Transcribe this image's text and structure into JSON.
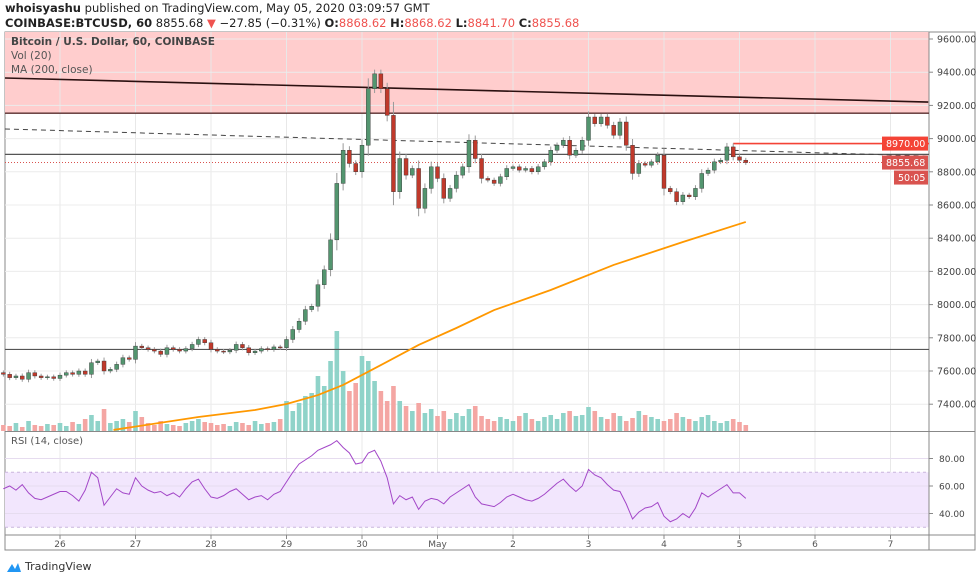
{
  "header": {
    "author": "whoisyashu",
    "published_text": "published on TradingView.com, May 05, 2020 03:09:57 GMT",
    "symbol": "COINBASE:BTCUSD, 60",
    "last": "8855.68",
    "change": "−27.85 (−0.31%)",
    "change_direction": "down",
    "o_label": "O:",
    "o": "8868.62",
    "h_label": "H:",
    "h": "8868.62",
    "l_label": "L:",
    "l": "8841.70",
    "c_label": "C:",
    "c": "8855.68"
  },
  "legend": {
    "title": "Bitcoin / U.S. Dollar, 60, COINBASE",
    "vol": "Vol (20)",
    "ma": "MA (200, close)",
    "rsi": "RSI (14, close)"
  },
  "footer": {
    "brand": "TradingView"
  },
  "colors": {
    "up": "#53956f",
    "down": "#c0392b",
    "vol_up": "#8fd3c9",
    "vol_down": "#f4a6a3",
    "ma": "#ff9800",
    "rsi": "#a347c8",
    "rsi_band": "#f2e6fd",
    "zone": "#ffcdcd",
    "accent_red": "#f44336",
    "last_price": "#d9534f"
  },
  "chart_data": [
    {
      "type": "candlestick",
      "title": "Bitcoin / U.S. Dollar, 60, COINBASE",
      "ylim": [
        7250,
        9650
      ],
      "y_ticks": [
        "9600.00",
        "9400.00",
        "9200.00",
        "9000.00",
        "8800.00",
        "8600.00",
        "8400.00",
        "8200.00",
        "8000.00",
        "7800.00",
        "7600.00",
        "7400.00"
      ],
      "x_ticks": [
        {
          "label": "26",
          "t": "04-26 00:00"
        },
        {
          "label": "27",
          "t": "04-27 00:00"
        },
        {
          "label": "28",
          "t": "04-28 00:00"
        },
        {
          "label": "29",
          "t": "04-29 00:00"
        },
        {
          "label": "30",
          "t": "04-30 00:00"
        },
        {
          "label": "May",
          "t": "05-01 00:00"
        },
        {
          "label": "2",
          "t": "05-02 00:00"
        },
        {
          "label": "3",
          "t": "05-03 00:00"
        },
        {
          "label": "4",
          "t": "05-04 00:00"
        },
        {
          "label": "5",
          "t": "05-05 00:00"
        },
        {
          "label": "6",
          "t": "05-06 00:00"
        },
        {
          "label": "7",
          "t": "05-07 00:00"
        }
      ],
      "grid": true,
      "columns": [
        "time",
        "close",
        "volume_relative_pct",
        "rsi"
      ],
      "rows": [
        [
          "04-25 06:00",
          7580,
          6,
          58
        ],
        [
          "04-25 08:00",
          7560,
          5,
          60
        ],
        [
          "04-25 10:00",
          7570,
          8,
          57
        ],
        [
          "04-25 12:00",
          7550,
          4,
          61
        ],
        [
          "04-25 14:00",
          7590,
          10,
          55
        ],
        [
          "04-25 16:00",
          7570,
          6,
          51
        ],
        [
          "04-25 18:00",
          7560,
          5,
          50
        ],
        [
          "04-25 20:00",
          7565,
          7,
          52
        ],
        [
          "04-25 22:00",
          7555,
          6,
          54
        ],
        [
          "04-26 00:00",
          7575,
          8,
          56
        ],
        [
          "04-26 02:00",
          7590,
          5,
          56
        ],
        [
          "04-26 04:00",
          7580,
          9,
          53
        ],
        [
          "04-26 06:00",
          7600,
          7,
          49
        ],
        [
          "04-26 08:00",
          7580,
          12,
          57
        ],
        [
          "04-26 10:00",
          7650,
          16,
          70
        ],
        [
          "04-26 12:00",
          7660,
          10,
          66
        ],
        [
          "04-26 14:00",
          7600,
          22,
          46
        ],
        [
          "04-26 16:00",
          7610,
          8,
          52
        ],
        [
          "04-26 18:00",
          7640,
          10,
          58
        ],
        [
          "04-26 20:00",
          7680,
          12,
          55
        ],
        [
          "04-26 22:00",
          7670,
          9,
          54
        ],
        [
          "04-27 00:00",
          7750,
          20,
          66
        ],
        [
          "04-27 02:00",
          7740,
          14,
          60
        ],
        [
          "04-27 04:00",
          7730,
          8,
          57
        ],
        [
          "04-27 06:00",
          7720,
          6,
          55
        ],
        [
          "04-27 08:00",
          7700,
          10,
          56
        ],
        [
          "04-27 10:00",
          7740,
          7,
          53
        ],
        [
          "04-27 12:00",
          7730,
          6,
          55
        ],
        [
          "04-27 14:00",
          7720,
          5,
          52
        ],
        [
          "04-27 16:00",
          7735,
          8,
          58
        ],
        [
          "04-27 18:00",
          7760,
          10,
          63
        ],
        [
          "04-27 20:00",
          7790,
          12,
          65
        ],
        [
          "04-27 22:00",
          7770,
          9,
          58
        ],
        [
          "04-28 00:00",
          7730,
          8,
          52
        ],
        [
          "04-28 02:00",
          7720,
          6,
          51
        ],
        [
          "04-28 04:00",
          7715,
          7,
          53
        ],
        [
          "04-28 06:00",
          7725,
          5,
          56
        ],
        [
          "04-28 08:00",
          7760,
          9,
          58
        ],
        [
          "04-28 10:00",
          7740,
          8,
          54
        ],
        [
          "04-28 12:00",
          7710,
          6,
          50
        ],
        [
          "04-28 14:00",
          7720,
          10,
          52
        ],
        [
          "04-28 16:00",
          7735,
          7,
          53
        ],
        [
          "04-28 18:00",
          7730,
          8,
          50
        ],
        [
          "04-28 20:00",
          7745,
          9,
          54
        ],
        [
          "04-28 22:00",
          7740,
          12,
          56
        ],
        [
          "04-29 00:00",
          7790,
          30,
          63
        ],
        [
          "04-29 02:00",
          7850,
          20,
          70
        ],
        [
          "04-29 04:00",
          7900,
          28,
          76
        ],
        [
          "04-29 06:00",
          7970,
          35,
          79
        ],
        [
          "04-29 08:00",
          7990,
          38,
          82
        ],
        [
          "04-29 10:00",
          8120,
          55,
          86
        ],
        [
          "04-29 12:00",
          8210,
          45,
          88
        ],
        [
          "04-29 14:00",
          8390,
          70,
          90
        ],
        [
          "04-29 16:00",
          8730,
          100,
          93
        ],
        [
          "04-29 18:00",
          8930,
          60,
          88
        ],
        [
          "04-29 20:00",
          8850,
          40,
          84
        ],
        [
          "04-29 22:00",
          8800,
          48,
          76
        ],
        [
          "04-30 00:00",
          8960,
          75,
          77
        ],
        [
          "04-30 02:00",
          9300,
          70,
          84
        ],
        [
          "04-30 04:00",
          9390,
          50,
          86
        ],
        [
          "04-30 06:00",
          9300,
          40,
          78
        ],
        [
          "04-30 08:00",
          9140,
          30,
          66
        ],
        [
          "04-30 10:00",
          8680,
          45,
          47
        ],
        [
          "04-30 12:00",
          8880,
          30,
          53
        ],
        [
          "04-30 14:00",
          8780,
          25,
          50
        ],
        [
          "04-30 16:00",
          8820,
          20,
          52
        ],
        [
          "04-30 18:00",
          8580,
          28,
          43
        ],
        [
          "04-30 20:00",
          8700,
          18,
          49
        ],
        [
          "04-30 22:00",
          8830,
          22,
          51
        ],
        [
          "05-01 00:00",
          8760,
          15,
          50
        ],
        [
          "05-01 02:00",
          8640,
          20,
          47
        ],
        [
          "05-01 04:00",
          8700,
          12,
          52
        ],
        [
          "05-01 06:00",
          8780,
          18,
          55
        ],
        [
          "05-01 08:00",
          8830,
          15,
          58
        ],
        [
          "05-01 10:00",
          8990,
          22,
          61
        ],
        [
          "05-01 12:00",
          8880,
          25,
          52
        ],
        [
          "05-01 14:00",
          8760,
          15,
          47
        ],
        [
          "05-01 16:00",
          8750,
          12,
          46
        ],
        [
          "05-01 18:00",
          8730,
          10,
          45
        ],
        [
          "05-01 20:00",
          8770,
          14,
          48
        ],
        [
          "05-01 22:00",
          8820,
          12,
          52
        ],
        [
          "05-02 00:00",
          8830,
          10,
          54
        ],
        [
          "05-02 02:00",
          8810,
          15,
          52
        ],
        [
          "05-02 04:00",
          8820,
          18,
          50
        ],
        [
          "05-02 06:00",
          8800,
          12,
          49
        ],
        [
          "05-02 08:00",
          8830,
          10,
          51
        ],
        [
          "05-02 10:00",
          8860,
          14,
          54
        ],
        [
          "05-02 12:00",
          8930,
          16,
          58
        ],
        [
          "05-02 14:00",
          8960,
          12,
          62
        ],
        [
          "05-02 16:00",
          8990,
          18,
          65
        ],
        [
          "05-02 18:00",
          8900,
          20,
          60
        ],
        [
          "05-02 20:00",
          8930,
          15,
          56
        ],
        [
          "05-02 22:00",
          8990,
          16,
          60
        ],
        [
          "05-03 00:00",
          9130,
          24,
          72
        ],
        [
          "05-03 02:00",
          9090,
          20,
          68
        ],
        [
          "05-03 04:00",
          9130,
          14,
          66
        ],
        [
          "05-03 06:00",
          9080,
          12,
          61
        ],
        [
          "05-03 08:00",
          9020,
          18,
          57
        ],
        [
          "05-03 10:00",
          9100,
          15,
          56
        ],
        [
          "05-03 12:00",
          8960,
          10,
          47
        ],
        [
          "05-03 14:00",
          8790,
          13,
          36
        ],
        [
          "05-03 16:00",
          8850,
          20,
          41
        ],
        [
          "05-03 18:00",
          8840,
          16,
          44
        ],
        [
          "05-03 20:00",
          8860,
          14,
          45
        ],
        [
          "05-03 22:00",
          8900,
          12,
          48
        ],
        [
          "05-04 00:00",
          8700,
          10,
          38
        ],
        [
          "05-04 02:00",
          8680,
          12,
          34
        ],
        [
          "05-04 04:00",
          8620,
          18,
          36
        ],
        [
          "05-04 06:00",
          8660,
          14,
          40
        ],
        [
          "05-04 08:00",
          8650,
          12,
          37
        ],
        [
          "05-04 10:00",
          8700,
          10,
          44
        ],
        [
          "05-04 12:00",
          8790,
          14,
          55
        ],
        [
          "05-04 14:00",
          8810,
          16,
          52
        ],
        [
          "05-04 16:00",
          8860,
          10,
          55
        ],
        [
          "05-04 18:00",
          8870,
          8,
          58
        ],
        [
          "05-04 20:00",
          8950,
          10,
          61
        ],
        [
          "05-04 22:00",
          8890,
          12,
          55
        ],
        [
          "05-05 00:00",
          8870,
          9,
          55
        ],
        [
          "05-05 02:00",
          8855.68,
          6,
          51
        ]
      ],
      "ma200": {
        "label": "MA (200, close)",
        "points": [
          [
            "04-26 17:00",
            7245
          ],
          [
            "04-27 20:00",
            7323
          ],
          [
            "04-28 14:00",
            7365
          ],
          [
            "04-29 00:00",
            7401
          ],
          [
            "04-29 10:00",
            7455
          ],
          [
            "04-29 18:00",
            7516
          ],
          [
            "04-30 06:00",
            7636
          ],
          [
            "04-30 18:00",
            7757
          ],
          [
            "05-01 06:00",
            7859
          ],
          [
            "05-01 18:00",
            7967
          ],
          [
            "05-02 12:00",
            8088
          ],
          [
            "05-03 08:00",
            8239
          ],
          [
            "05-04 06:00",
            8377
          ],
          [
            "05-05 02:00",
            8498
          ]
        ]
      },
      "drawings": {
        "resistance_zone": {
          "from": 9153,
          "to": 9650
        },
        "trendline_black": [
          [
            "04-25 06:30",
            9365
          ],
          [
            "05-07 12:00",
            9220
          ]
        ],
        "trendline_dashed": [
          [
            "04-25 06:30",
            9058
          ],
          [
            "05-07 12:00",
            8895
          ]
        ],
        "horizontal_lines": [
          8905,
          7730
        ],
        "red_level": {
          "from": "05-04 22:00",
          "price": 8970
        }
      },
      "price_labels": {
        "level": "8970.00",
        "last": "8855.68",
        "countdown": "50:05"
      }
    },
    {
      "type": "line",
      "title": "RSI (14, close)",
      "ylim": [
        25,
        100
      ],
      "y_ticks": [
        "80.00",
        "60.00",
        "40.00"
      ],
      "band": [
        30,
        70
      ]
    }
  ]
}
